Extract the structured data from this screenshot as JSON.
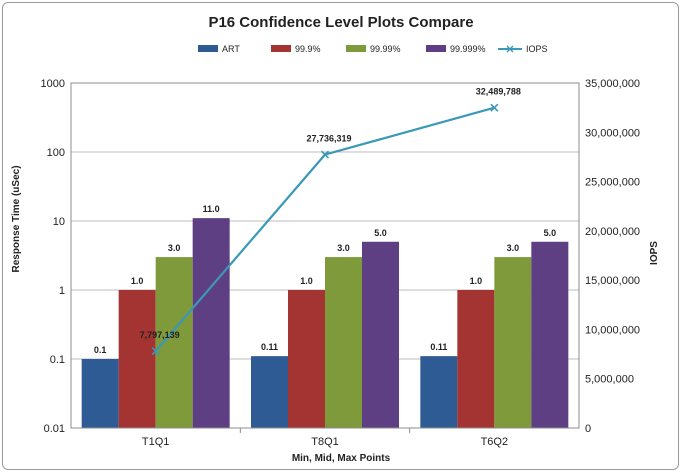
{
  "chart_data": {
    "type": "bar",
    "title": "P16 Confidence Level Plots Compare",
    "xlabel": "Min, Mid, Max Points",
    "ylabel": "Response Time (uSec)",
    "y2label": "IOPS",
    "yscale": "log",
    "ylim": [
      0.01,
      1000
    ],
    "y_ticks": [
      "0.01",
      "0.1",
      "1",
      "10",
      "100",
      "1000"
    ],
    "y2lim": [
      0,
      35000000
    ],
    "y2_ticks": [
      "0",
      "5,000,000",
      "10,000,000",
      "15,000,000",
      "20,000,000",
      "25,000,000",
      "30,000,000",
      "35,000,000"
    ],
    "categories": [
      "T1Q1",
      "T8Q1",
      "T6Q2"
    ],
    "series": [
      {
        "name": "ART",
        "color": "#2f5b94",
        "values": [
          0.1,
          0.11,
          0.11
        ],
        "labels": [
          "0.1",
          "0.11",
          "0.11"
        ]
      },
      {
        "name": "99.9%",
        "color": "#a43432",
        "values": [
          1.0,
          1.0,
          1.0
        ],
        "labels": [
          "1.0",
          "1.0",
          "1.0"
        ]
      },
      {
        "name": "99.99%",
        "color": "#7e9a3b",
        "values": [
          3.0,
          3.0,
          3.0
        ],
        "labels": [
          "3.0",
          "3.0",
          "3.0"
        ]
      },
      {
        "name": "99.999%",
        "color": "#5e3f83",
        "values": [
          11.0,
          5.0,
          5.0
        ],
        "labels": [
          "11.0",
          "5.0",
          "5.0"
        ]
      }
    ],
    "line_series": {
      "name": "IOPS",
      "color": "#3a98b8",
      "axis": "y2",
      "values": [
        7797139,
        27736319,
        32489788
      ],
      "labels": [
        "7,797,139",
        "27,736,319",
        "32,489,788"
      ]
    },
    "legend_position": "top",
    "grid": true
  }
}
